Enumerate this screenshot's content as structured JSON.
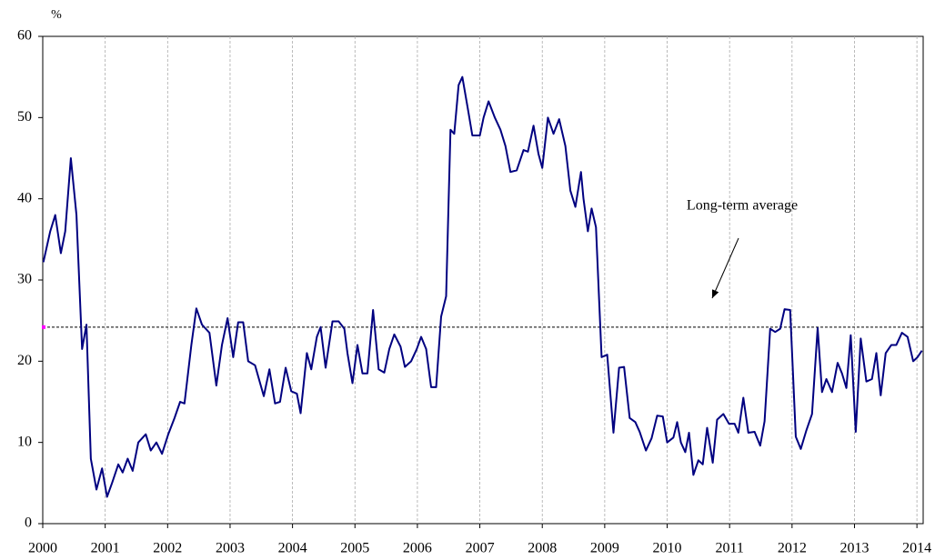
{
  "chart_data": {
    "type": "line",
    "y_label": "%",
    "x": [
      2000.01,
      2000.12,
      2000.2,
      2000.29,
      2000.36,
      2000.45,
      2000.54,
      2000.63,
      2000.7,
      2000.77,
      2000.86,
      2000.95,
      2001.03,
      2001.11,
      2001.21,
      2001.28,
      2001.36,
      2001.44,
      2001.53,
      2001.65,
      2001.73,
      2001.82,
      2001.91,
      2002.01,
      2002.11,
      2002.2,
      2002.27,
      2002.38,
      2002.46,
      2002.55,
      2002.67,
      2002.78,
      2002.87,
      2002.96,
      2003.05,
      2003.13,
      2003.21,
      2003.29,
      2003.4,
      2003.54,
      2003.63,
      2003.72,
      2003.8,
      2003.89,
      2003.98,
      2004.07,
      2004.13,
      2004.23,
      2004.3,
      2004.39,
      2004.45,
      2004.53,
      2004.64,
      2004.74,
      2004.83,
      2004.88,
      2004.96,
      2005.04,
      2005.12,
      2005.2,
      2005.29,
      2005.38,
      2005.47,
      2005.55,
      2005.63,
      2005.73,
      2005.8,
      2005.9,
      2005.99,
      2006.06,
      2006.14,
      2006.22,
      2006.3,
      2006.38,
      2006.46,
      2006.53,
      2006.59,
      2006.66,
      2006.72,
      2006.81,
      2006.88,
      2007.0,
      2007.06,
      2007.14,
      2007.24,
      2007.33,
      2007.41,
      2007.49,
      2007.59,
      2007.7,
      2007.77,
      2007.86,
      2007.94,
      2008.0,
      2008.09,
      2008.18,
      2008.27,
      2008.37,
      2008.45,
      2008.53,
      2008.62,
      2008.66,
      2008.73,
      2008.79,
      2008.86,
      2008.95,
      2009.04,
      2009.14,
      2009.23,
      2009.31,
      2009.4,
      2009.49,
      2009.56,
      2009.66,
      2009.75,
      2009.84,
      2009.93,
      2010.0,
      2010.1,
      2010.16,
      2010.22,
      2010.29,
      2010.35,
      2010.42,
      2010.5,
      2010.57,
      2010.64,
      2010.73,
      2010.8,
      2010.9,
      2010.99,
      2011.08,
      2011.14,
      2011.22,
      2011.3,
      2011.4,
      2011.49,
      2011.56,
      2011.65,
      2011.73,
      2011.81,
      2011.88,
      2011.97,
      2012.06,
      2012.14,
      2012.23,
      2012.32,
      2012.41,
      2012.48,
      2012.55,
      2012.64,
      2012.73,
      2012.8,
      2012.87,
      2012.94,
      2013.02,
      2013.1,
      2013.19,
      2013.28,
      2013.35,
      2013.42,
      2013.5,
      2013.59,
      2013.67,
      2013.76,
      2013.85,
      2013.94,
      2014.01,
      2014.08
    ],
    "series": [
      {
        "color": "#000080",
        "values": [
          32.2,
          36,
          38,
          33.3,
          36,
          45,
          38,
          21.5,
          24.5,
          8,
          4.2,
          6.8,
          3.3,
          5,
          7.3,
          6.3,
          8,
          6.5,
          10,
          11,
          9,
          10,
          8.6,
          11,
          13,
          15,
          14.8,
          22,
          26.5,
          24.5,
          23.5,
          17,
          22,
          25.3,
          20.5,
          24.8,
          24.8,
          20,
          19.5,
          15.7,
          19,
          14.8,
          15,
          19.2,
          16.3,
          16,
          13.6,
          21,
          19,
          23,
          24.2,
          19.2,
          24.9,
          24.9,
          24,
          21,
          17.3,
          22,
          18.5,
          18.5,
          26.3,
          19,
          18.6,
          21.5,
          23.3,
          21.8,
          19.3,
          20,
          21.5,
          23,
          21.5,
          16.8,
          16.8,
          25.5,
          28,
          48.5,
          48,
          54,
          55,
          51,
          47.8,
          47.8,
          50,
          52,
          50,
          48.5,
          46.5,
          43.3,
          43.5,
          46,
          45.8,
          49,
          45.5,
          43.8,
          50,
          48,
          49.8,
          46.5,
          41,
          39,
          43.3,
          40,
          36,
          38.8,
          36.5,
          20.5,
          20.8,
          11.2,
          19.2,
          19.3,
          13,
          12.5,
          11.3,
          9,
          10.5,
          13.3,
          13.2,
          10,
          10.6,
          12.5,
          10,
          8.8,
          11.2,
          6,
          7.8,
          7.3,
          11.8,
          7.5,
          12.8,
          13.5,
          12.3,
          12.3,
          11.2,
          15.5,
          11.2,
          11.3,
          9.6,
          12.6,
          24,
          23.6,
          24,
          26.4,
          26.3,
          10.7,
          9.2,
          11.5,
          13.5,
          24.1,
          16.2,
          17.8,
          16.2,
          19.8,
          18.5,
          16.7,
          23.2,
          11.3,
          22.8,
          17.5,
          17.8,
          21,
          15.8,
          21,
          22,
          22,
          23.5,
          23,
          20,
          20.5,
          21.3
        ]
      }
    ],
    "average_line": {
      "value": 24.2,
      "label": "Long-term average",
      "color": "#000000",
      "marker_color": "#ff00ff"
    },
    "xlim": [
      2000,
      2014.1
    ],
    "xticks": [
      2000,
      2001,
      2002,
      2003,
      2004,
      2005,
      2006,
      2007,
      2008,
      2009,
      2010,
      2011,
      2012,
      2013,
      2014
    ],
    "ylim": [
      0,
      60
    ],
    "yticks": [
      0,
      10,
      20,
      30,
      40,
      50,
      60
    ],
    "grid": "x"
  }
}
